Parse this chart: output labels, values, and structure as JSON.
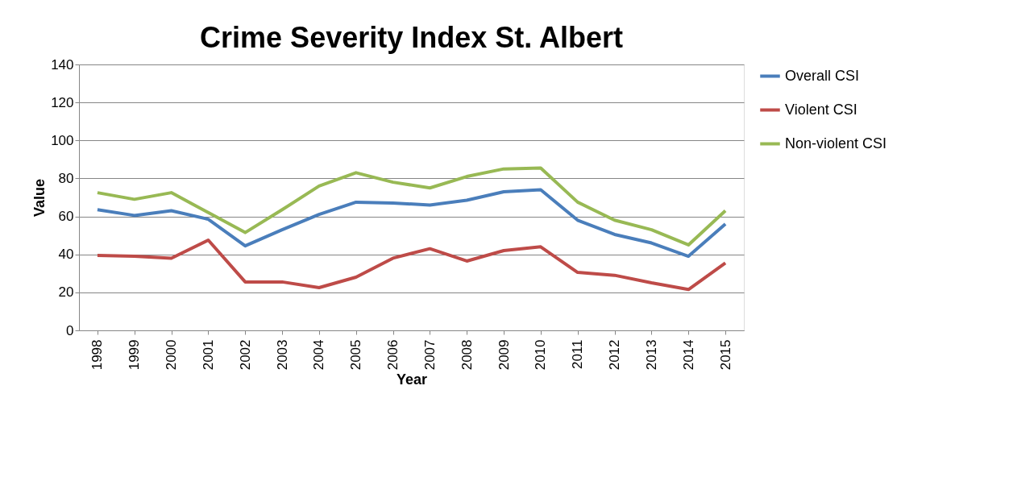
{
  "chart_data": {
    "type": "line",
    "title": "Crime Severity Index St. Albert",
    "xlabel": "Year",
    "ylabel": "Value",
    "categories": [
      "1998",
      "1999",
      "2000",
      "2001",
      "2002",
      "2003",
      "2004",
      "2005",
      "2006",
      "2007",
      "2008",
      "2009",
      "2010",
      "2011",
      "2012",
      "2013",
      "2014",
      "2015"
    ],
    "series": [
      {
        "name": "Overall CSI",
        "color": "#4a7ebb",
        "values": [
          63.5,
          60.5,
          63,
          58.5,
          44.5,
          53,
          61,
          67.5,
          67,
          66,
          68.5,
          73,
          74,
          58,
          50.5,
          46,
          39,
          56
        ]
      },
      {
        "name": "Violent CSI",
        "color": "#be4b48",
        "values": [
          39.5,
          39,
          38,
          47.5,
          25.5,
          25.5,
          22.5,
          28,
          38,
          43,
          36.5,
          42,
          44,
          30.5,
          29,
          25,
          21.5,
          35.5
        ]
      },
      {
        "name": "Non-violent CSI",
        "color": "#98b954",
        "values": [
          72.5,
          69,
          72.5,
          62,
          51.5,
          63.5,
          76,
          83,
          78,
          75,
          81,
          85,
          85.5,
          67.5,
          58,
          53,
          45,
          63
        ]
      }
    ],
    "ylim": [
      0,
      140
    ],
    "yticks": [
      0,
      20,
      40,
      60,
      80,
      100,
      120,
      140
    ],
    "grid": "y",
    "legend": "right",
    "marker": "none",
    "line_style": "solid"
  }
}
